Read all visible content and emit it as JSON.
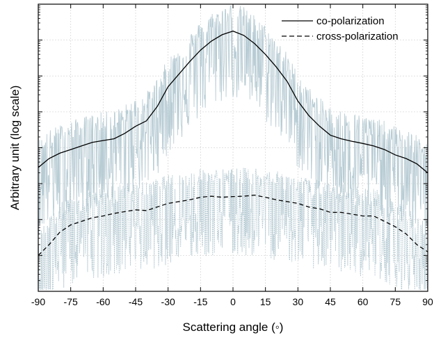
{
  "chart_data": {
    "type": "line",
    "xlabel": "Scattering angle (◦)",
    "ylabel": "Arbitrary unit (log scale)",
    "xlim": [
      -90,
      90
    ],
    "x_ticks": [
      -90,
      -75,
      -60,
      -45,
      -30,
      -15,
      0,
      15,
      30,
      45,
      60,
      75,
      90
    ],
    "x_tick_labels": [
      "-90",
      "-75",
      "-60",
      "-45",
      "-30",
      "-15",
      "0",
      "15",
      "30",
      "45",
      "60",
      "75",
      "90"
    ],
    "ylim": [
      0,
      8
    ],
    "y_scale": "log (unlabeled decades)",
    "y_ticks": [
      1,
      2,
      3,
      4,
      5,
      6,
      7,
      8
    ],
    "grid": true,
    "legend_position": "top-right",
    "series": [
      {
        "name": "co-polarization",
        "style": "solid",
        "color": "#000000",
        "x": [
          -90,
          -85,
          -80,
          -75,
          -70,
          -65,
          -60,
          -55,
          -50,
          -45,
          -40,
          -35,
          -30,
          -25,
          -20,
          -15,
          -10,
          -5,
          0,
          5,
          10,
          15,
          20,
          25,
          30,
          35,
          40,
          45,
          50,
          55,
          60,
          65,
          70,
          75,
          80,
          85,
          90
        ],
        "y": [
          3.45,
          3.7,
          3.85,
          3.95,
          4.05,
          4.15,
          4.2,
          4.25,
          4.4,
          4.6,
          4.75,
          5.15,
          5.7,
          6.05,
          6.4,
          6.72,
          6.97,
          7.15,
          7.25,
          7.13,
          6.9,
          6.6,
          6.25,
          5.85,
          5.3,
          4.9,
          4.6,
          4.35,
          4.25,
          4.18,
          4.12,
          4.05,
          3.95,
          3.8,
          3.7,
          3.55,
          3.3
        ]
      },
      {
        "name": "cross-polarization",
        "style": "dashed",
        "color": "#000000",
        "x": [
          -90,
          -85,
          -80,
          -75,
          -70,
          -65,
          -60,
          -55,
          -50,
          -45,
          -40,
          -35,
          -30,
          -25,
          -20,
          -15,
          -10,
          -5,
          0,
          5,
          10,
          15,
          20,
          25,
          30,
          35,
          40,
          45,
          50,
          55,
          60,
          65,
          70,
          75,
          80,
          85,
          90
        ],
        "y": [
          1.0,
          1.3,
          1.65,
          1.85,
          1.95,
          2.05,
          2.1,
          2.17,
          2.22,
          2.27,
          2.25,
          2.35,
          2.45,
          2.5,
          2.55,
          2.62,
          2.65,
          2.62,
          2.64,
          2.65,
          2.68,
          2.62,
          2.55,
          2.5,
          2.45,
          2.35,
          2.3,
          2.2,
          2.2,
          2.15,
          2.1,
          2.1,
          1.95,
          1.8,
          1.6,
          1.3,
          1.1
        ]
      }
    ],
    "noise_color": "#b8ccd4",
    "legend": [
      {
        "label": "co-polarization",
        "style": "solid"
      },
      {
        "label": "cross-polarization",
        "style": "dashed"
      }
    ]
  }
}
